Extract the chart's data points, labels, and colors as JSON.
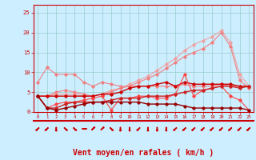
{
  "x": [
    0,
    1,
    2,
    3,
    4,
    5,
    6,
    7,
    8,
    9,
    10,
    11,
    12,
    13,
    14,
    15,
    16,
    17,
    18,
    19,
    20,
    21,
    22,
    23
  ],
  "lines": [
    {
      "y": [
        7.5,
        11.2,
        9.5,
        9.5,
        9.5,
        7.5,
        6.5,
        7.5,
        7.0,
        6.5,
        6.5,
        6.5,
        6.5,
        6.5,
        6.5,
        6.5,
        7.0,
        6.5,
        6.5,
        6.5,
        7.0,
        6.5,
        6.5,
        6.5
      ],
      "color": "#f08080",
      "linewidth": 0.8,
      "marker": "D",
      "markersize": 1.8
    },
    {
      "y": [
        4.0,
        4.0,
        4.5,
        4.5,
        4.5,
        4.0,
        4.0,
        4.5,
        5.5,
        6.0,
        7.0,
        8.0,
        9.0,
        10.5,
        12.0,
        13.5,
        15.5,
        17.0,
        18.0,
        19.0,
        20.5,
        17.5,
        9.5,
        6.5
      ],
      "color": "#f0a0a0",
      "linewidth": 0.8,
      "marker": "D",
      "markersize": 1.8
    },
    {
      "y": [
        4.0,
        4.0,
        5.0,
        5.5,
        5.0,
        4.5,
        4.0,
        4.5,
        5.0,
        6.0,
        6.5,
        7.5,
        8.5,
        9.5,
        11.0,
        12.5,
        14.0,
        15.0,
        16.0,
        17.5,
        20.0,
        16.5,
        8.0,
        6.0
      ],
      "color": "#f08080",
      "linewidth": 0.8,
      "marker": "D",
      "markersize": 1.8
    },
    {
      "y": [
        4.0,
        4.0,
        4.0,
        4.0,
        4.0,
        4.0,
        4.0,
        4.5,
        4.5,
        5.0,
        6.0,
        6.5,
        6.5,
        7.0,
        7.5,
        6.5,
        7.5,
        7.0,
        7.0,
        7.0,
        7.0,
        7.0,
        6.5,
        6.5
      ],
      "color": "#cc0000",
      "linewidth": 1.0,
      "marker": "D",
      "markersize": 1.8
    },
    {
      "y": [
        4.0,
        1.0,
        2.0,
        2.5,
        2.5,
        3.0,
        3.5,
        4.0,
        0.5,
        3.5,
        3.5,
        4.0,
        4.0,
        3.5,
        3.5,
        4.5,
        9.5,
        4.0,
        5.5,
        6.0,
        6.5,
        4.0,
        3.0,
        0.5
      ],
      "color": "#ff4444",
      "linewidth": 0.8,
      "marker": "D",
      "markersize": 1.8
    },
    {
      "y": [
        4.0,
        1.0,
        1.0,
        2.0,
        2.5,
        2.5,
        2.5,
        2.5,
        3.0,
        3.5,
        3.5,
        3.5,
        4.0,
        4.0,
        4.0,
        4.5,
        5.0,
        5.5,
        5.5,
        6.0,
        6.5,
        6.5,
        6.0,
        6.5
      ],
      "color": "#cc2222",
      "linewidth": 1.0,
      "marker": "D",
      "markersize": 1.8
    },
    {
      "y": [
        4.0,
        1.0,
        0.5,
        1.0,
        1.5,
        2.0,
        2.5,
        2.5,
        2.5,
        2.5,
        2.5,
        2.5,
        2.0,
        2.0,
        2.0,
        2.0,
        1.5,
        1.0,
        1.0,
        1.0,
        1.0,
        1.0,
        1.0,
        0.5
      ],
      "color": "#990000",
      "linewidth": 1.0,
      "marker": "D",
      "markersize": 1.8
    }
  ],
  "arrow_angles": [
    225,
    225,
    270,
    315,
    315,
    0,
    45,
    45,
    315,
    270,
    270,
    225,
    270,
    270,
    270,
    225,
    225,
    225,
    225,
    225,
    225,
    225,
    225,
    225
  ],
  "xlabel": "Vent moyen/en rafales ( km/h )",
  "xlabel_color": "#cc0000",
  "xlabel_fontsize": 7,
  "bg_color": "#cceeff",
  "grid_color": "#99cccc",
  "tick_color": "#cc0000",
  "spine_color": "#cc0000",
  "xlim": [
    -0.5,
    23.5
  ],
  "ylim": [
    0,
    27
  ],
  "yticks": [
    0,
    5,
    10,
    15,
    20,
    25
  ],
  "xticks": [
    0,
    1,
    2,
    3,
    4,
    5,
    6,
    7,
    8,
    9,
    10,
    11,
    12,
    13,
    14,
    15,
    16,
    17,
    18,
    19,
    20,
    21,
    22,
    23
  ]
}
